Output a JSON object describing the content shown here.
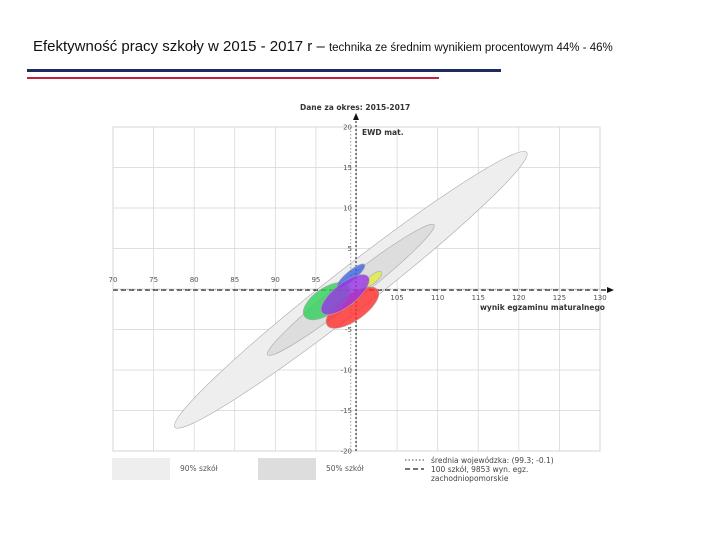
{
  "header": {
    "title_main": "Efektywność pracy szkoły w 2015 - 2017 r – ",
    "title_sub": "technika ze średnim wynikiem procentowym 44% - 46%",
    "rule_colors": [
      "#1f2a5e",
      "#c0223b"
    ]
  },
  "chart_data": {
    "type": "scatter",
    "title": "Dane za okres: 2015-2017",
    "xlabel": "wynik egzaminu maturalnego",
    "ylabel": "EWD mat.",
    "xlim": [
      70,
      130
    ],
    "ylim": [
      -20,
      20
    ],
    "x_ticks": [
      70,
      75,
      80,
      85,
      90,
      95,
      105,
      110,
      115,
      120,
      125,
      130
    ],
    "y_ticks": [
      20,
      15,
      10,
      5,
      -5,
      -10,
      -15,
      -20
    ],
    "grid": true,
    "reference_point": {
      "label": "średnia wojewódzka: (99.3; -0.1)",
      "x": 99.3,
      "y": -0.1
    },
    "regions": [
      {
        "name": "90% szkół",
        "cx": 99.3,
        "cy": -0.1,
        "rx": 27.5,
        "ry": 2.6,
        "angle_deg": 38,
        "color": "#eeeeee"
      },
      {
        "name": "50% szkół",
        "cx": 99.3,
        "cy": -0.1,
        "rx": 13,
        "ry": 1.4,
        "angle_deg": 38,
        "color": "#dddddd"
      }
    ],
    "series": [
      {
        "x": 99.5,
        "y": -2.3,
        "rx": 3.8,
        "ry": 1.6,
        "angle_deg": 35,
        "color": "#ff2a2a"
      },
      {
        "x": 96.3,
        "y": -1.5,
        "rx": 3.3,
        "ry": 1.6,
        "angle_deg": 35,
        "color": "#2ed15a"
      },
      {
        "x": 102.0,
        "y": 1.2,
        "rx": 1.4,
        "ry": 0.5,
        "angle_deg": 40,
        "color": "#e4ee44"
      },
      {
        "x": 99.3,
        "y": 1.6,
        "rx": 2.2,
        "ry": 0.6,
        "angle_deg": 40,
        "color": "#3c64e6"
      },
      {
        "x": 98.6,
        "y": -0.7,
        "rx": 3.6,
        "ry": 1.4,
        "angle_deg": 38,
        "color": "#9a35e6"
      }
    ],
    "legend": {
      "placement": "bottom",
      "items": [
        {
          "label": "90% szkół",
          "color": "#eeeeee"
        },
        {
          "label": "50% szkół",
          "color": "#dddddd"
        },
        {
          "label": "średnia wojewódzka: (99.3; -0.1)",
          "style": "dotted"
        },
        {
          "label": "100 szkół, 9853 wyn. egz.",
          "style": "dashed"
        },
        {
          "label": "zachodniopomorskie",
          "style": "none"
        }
      ]
    }
  }
}
